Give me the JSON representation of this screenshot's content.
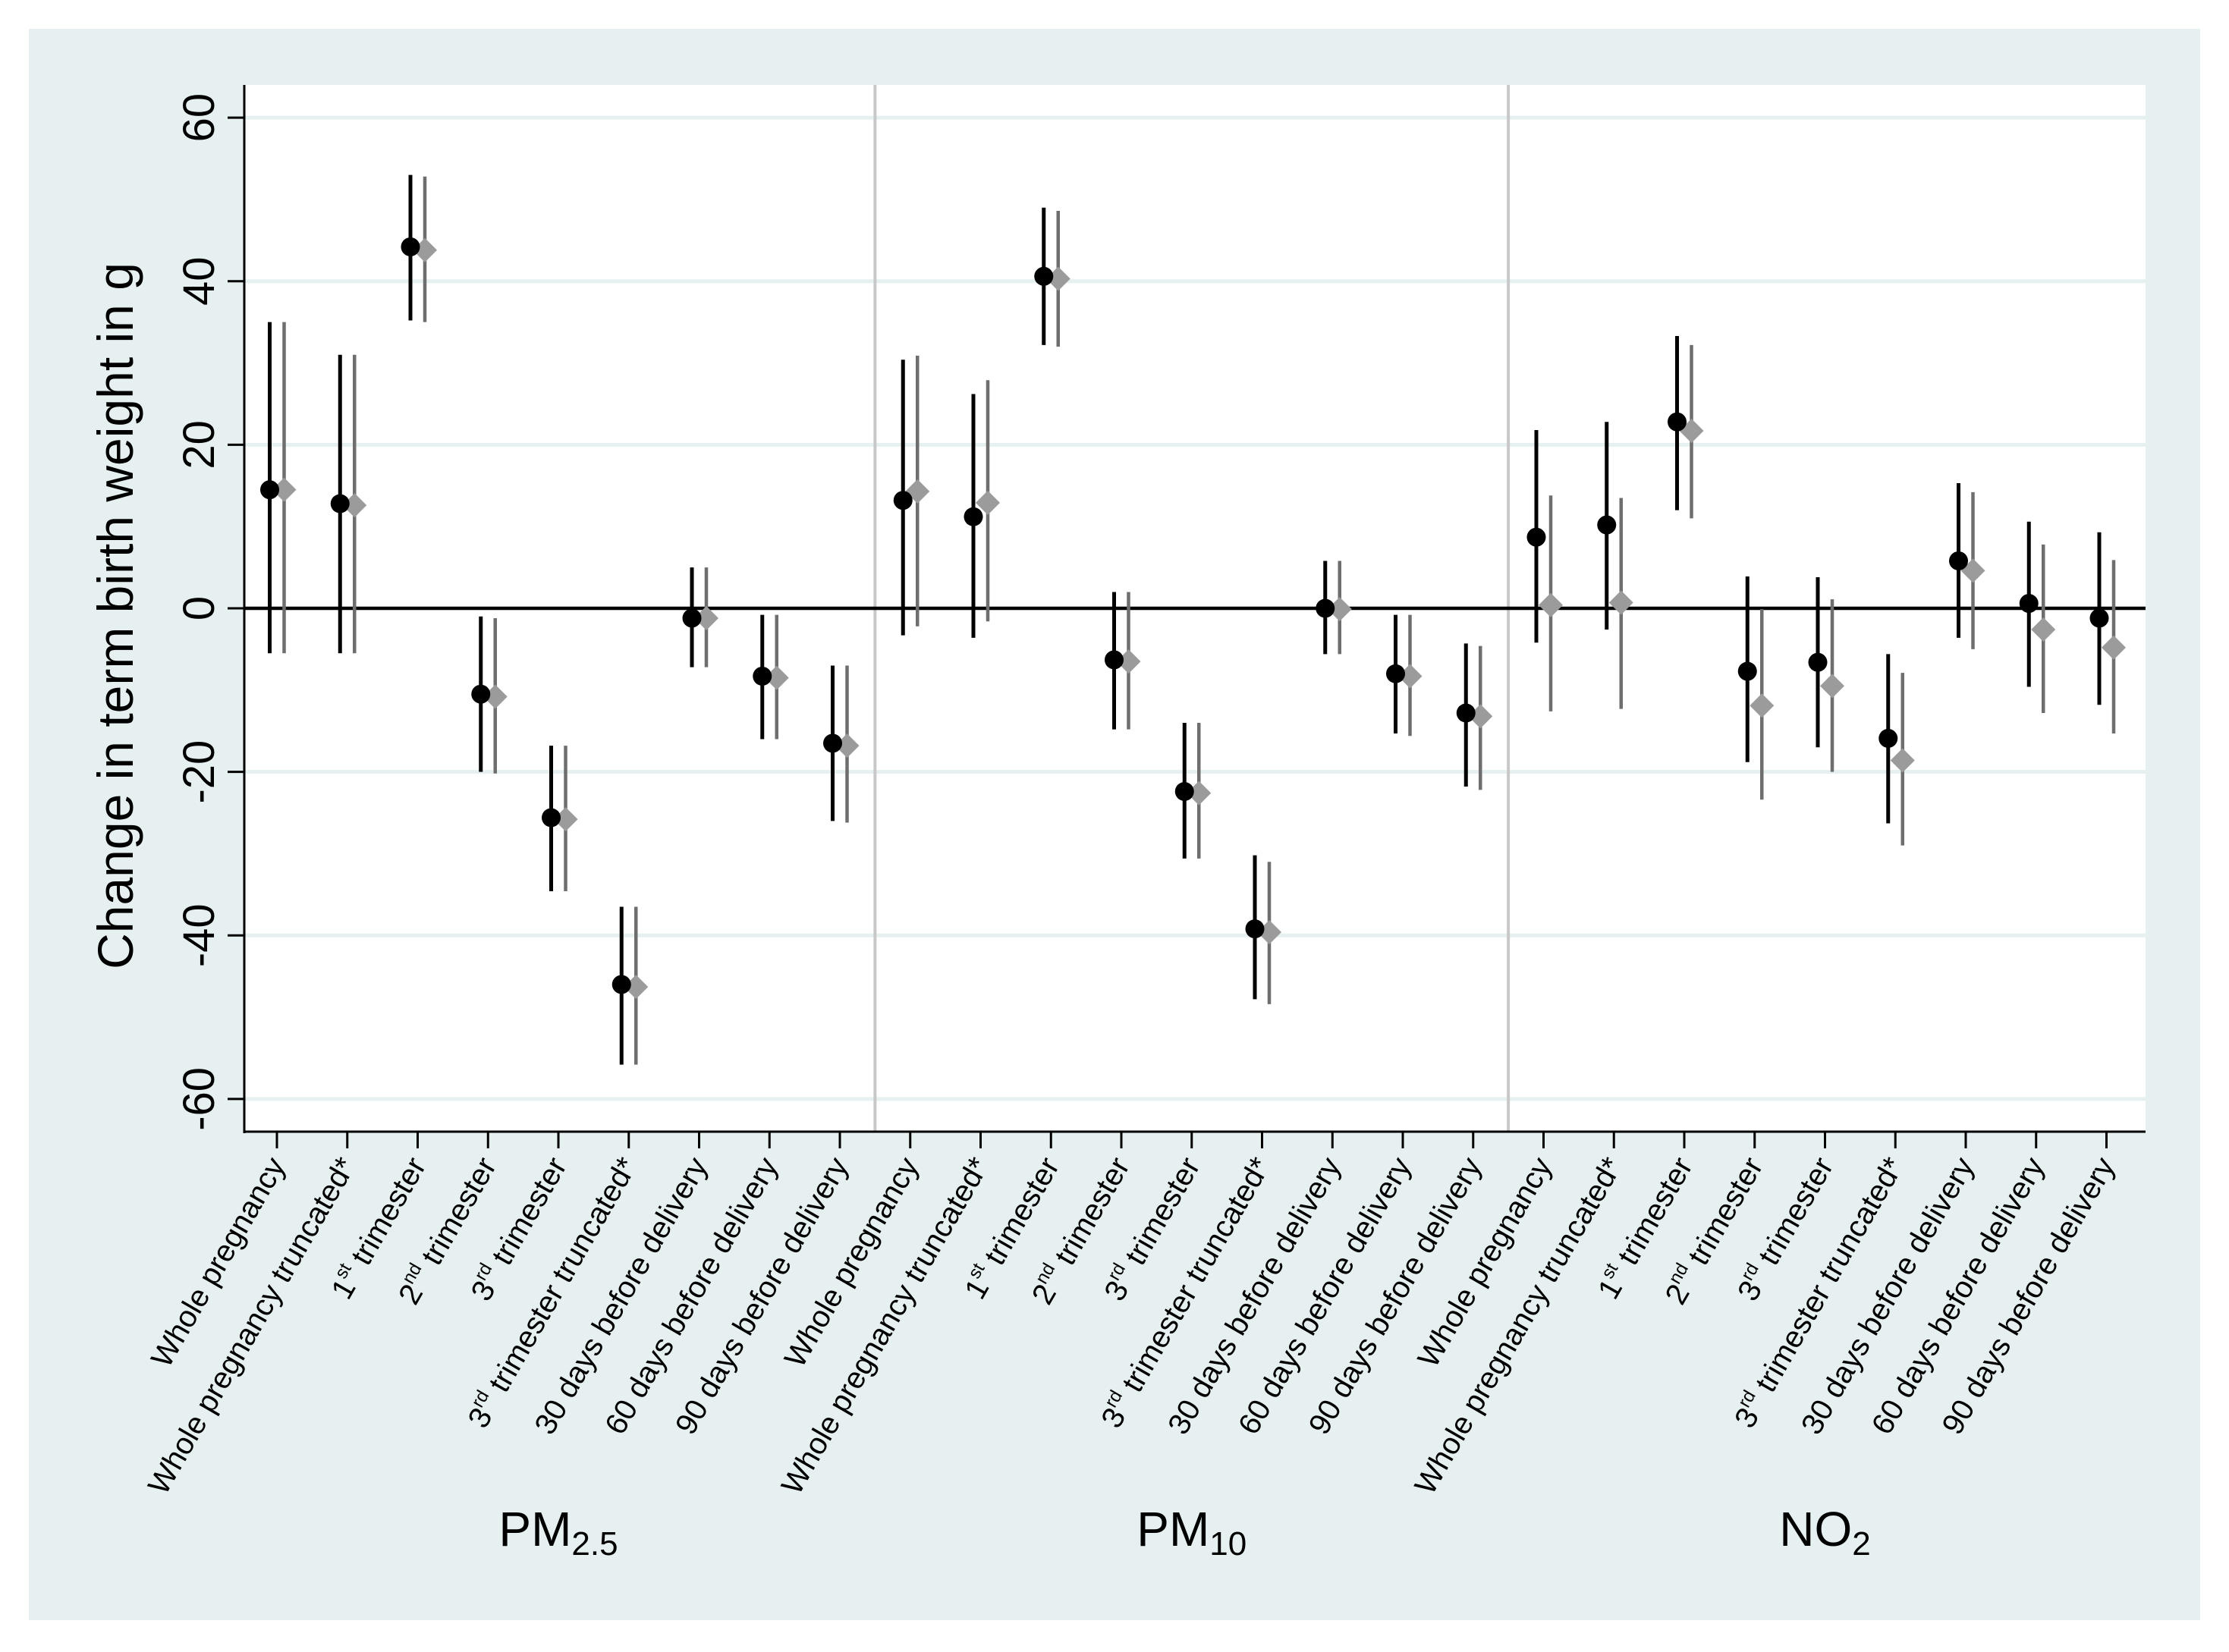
{
  "chart_data": {
    "type": "scatter",
    "subtype": "point-estimate with 95% confidence interval (two markers per category)",
    "ylabel": "Change in term birth weight in g",
    "ylim": [
      -64,
      64
    ],
    "yticks": [
      60,
      40,
      20,
      0,
      -20,
      -40,
      -60
    ],
    "ytick_labels": [
      "60",
      "40",
      "20",
      "0",
      "-20",
      "-40",
      "-60"
    ],
    "grid": true,
    "legend": "none",
    "colors": {
      "outer_background": "#e6f0f0",
      "plot_background": "#ffffff",
      "gridline": "#e6f0f0",
      "zero_line": "#000000",
      "separator": "#c8c8c8",
      "series_1": "#000000",
      "series_2": "#9b9b9b",
      "series_2_ci": "#6e6e6e"
    },
    "category_labels": [
      {
        "base": "Whole pregnancy",
        "sup": "",
        "rest": ""
      },
      {
        "base": "Whole pregnancy truncated*",
        "sup": "",
        "rest": ""
      },
      {
        "base": "1",
        "sup": "st",
        "rest": " trimester"
      },
      {
        "base": "2",
        "sup": "nd",
        "rest": " trimester"
      },
      {
        "base": "3",
        "sup": "rd",
        "rest": " trimester"
      },
      {
        "base": "3",
        "sup": "rd",
        "rest": " trimester truncated*"
      },
      {
        "base": "30 days before delivery",
        "sup": "",
        "rest": ""
      },
      {
        "base": "60 days before delivery",
        "sup": "",
        "rest": ""
      },
      {
        "base": "90 days before delivery",
        "sup": "",
        "rest": ""
      }
    ],
    "groups": [
      {
        "name": "PM",
        "sub": "2.5",
        "series": [
          {
            "marker": "circle",
            "estimate": [
              14.5,
              12.8,
              44.2,
              -10.5,
              -25.6,
              -46.0,
              -1.2,
              -8.3,
              -16.5
            ],
            "ci_low": [
              -5.5,
              -5.5,
              35.2,
              -20.0,
              -34.6,
              -55.8,
              -7.2,
              -16.0,
              -26.0
            ],
            "ci_high": [
              35.0,
              31.0,
              53.0,
              -1.0,
              -16.8,
              -36.5,
              5.0,
              -0.8,
              -7.0
            ]
          },
          {
            "marker": "diamond",
            "estimate": [
              14.5,
              12.6,
              43.8,
              -10.8,
              -25.8,
              -46.3,
              -1.2,
              -8.5,
              -16.8
            ],
            "ci_low": [
              -5.5,
              -5.5,
              35.0,
              -20.2,
              -34.6,
              -55.8,
              -7.2,
              -16.0,
              -26.2
            ],
            "ci_high": [
              35.0,
              31.0,
              52.8,
              -1.2,
              -16.8,
              -36.5,
              5.0,
              -0.8,
              -7.0
            ]
          }
        ]
      },
      {
        "name": "PM",
        "sub": "10",
        "series": [
          {
            "marker": "circle",
            "estimate": [
              13.2,
              11.2,
              40.6,
              -6.3,
              -22.4,
              -39.2,
              0.0,
              -8.0,
              -12.8
            ],
            "ci_low": [
              -3.3,
              -3.6,
              32.2,
              -14.8,
              -30.6,
              -47.8,
              -5.6,
              -15.3,
              -21.8
            ],
            "ci_high": [
              30.4,
              26.2,
              49.0,
              2.0,
              -14.0,
              -30.2,
              5.8,
              -0.8,
              -4.3
            ]
          },
          {
            "marker": "diamond",
            "estimate": [
              14.3,
              12.9,
              40.3,
              -6.5,
              -22.6,
              -39.6,
              -0.1,
              -8.3,
              -13.2
            ],
            "ci_low": [
              -2.2,
              -1.6,
              32.0,
              -14.8,
              -30.6,
              -48.4,
              -5.6,
              -15.6,
              -22.2
            ],
            "ci_high": [
              30.9,
              27.9,
              48.6,
              2.0,
              -14.0,
              -31.0,
              5.8,
              -0.8,
              -4.6
            ]
          }
        ]
      },
      {
        "name": "NO",
        "sub": "2",
        "series": [
          {
            "marker": "circle",
            "estimate": [
              8.7,
              10.2,
              22.8,
              -7.7,
              -6.6,
              -15.9,
              5.8,
              0.6,
              -1.2
            ],
            "ci_low": [
              -4.2,
              -2.6,
              12.0,
              -18.8,
              -17.0,
              -26.3,
              -3.6,
              -9.6,
              -11.8
            ],
            "ci_high": [
              21.8,
              22.8,
              33.3,
              3.9,
              3.8,
              -5.6,
              15.3,
              10.6,
              9.3
            ]
          },
          {
            "marker": "diamond",
            "estimate": [
              0.4,
              0.7,
              21.7,
              -11.9,
              -9.5,
              -18.6,
              4.6,
              -2.6,
              -4.8
            ],
            "ci_low": [
              -12.6,
              -12.3,
              11.0,
              -23.4,
              -20.0,
              -29.0,
              -5.0,
              -12.8,
              -15.3
            ],
            "ci_high": [
              13.8,
              13.5,
              32.2,
              -0.1,
              1.1,
              -7.9,
              14.2,
              7.8,
              5.9
            ]
          }
        ]
      }
    ]
  }
}
